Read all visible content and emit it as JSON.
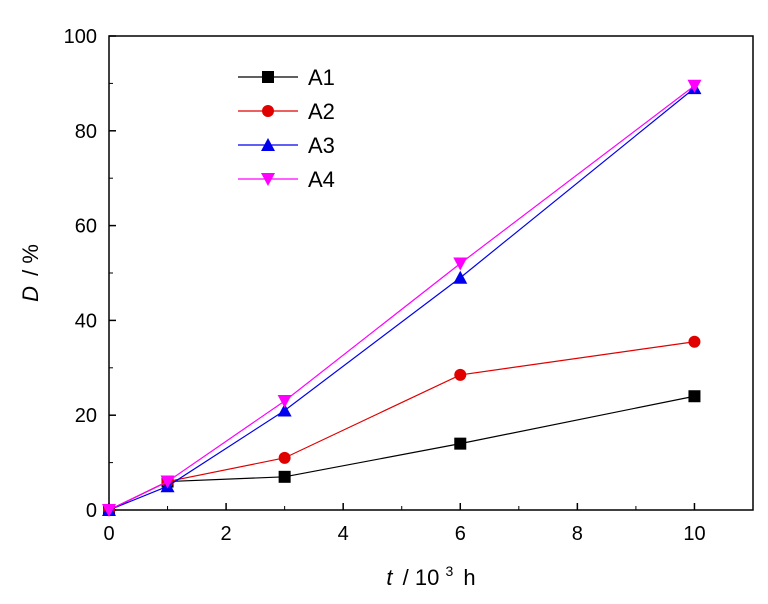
{
  "chart_data": {
    "type": "line",
    "title": "",
    "xlabel": {
      "var": "t",
      "rest": "/ 10",
      "sup": "3",
      "unit": "h"
    },
    "ylabel": {
      "var": "D",
      "rest": "/ %"
    },
    "xlim": [
      0,
      11
    ],
    "ylim": [
      0,
      100
    ],
    "xticks": [
      0,
      2,
      4,
      6,
      8,
      10
    ],
    "yticks": [
      0,
      20,
      40,
      60,
      80,
      100
    ],
    "grid": false,
    "legend": "top-left",
    "x": [
      0,
      1,
      3,
      6,
      10
    ],
    "series": [
      {
        "name": "A1",
        "color": "#000000",
        "marker": "square",
        "values": [
          0,
          6,
          7,
          14,
          24
        ]
      },
      {
        "name": "A2",
        "color": "#e00000",
        "marker": "circle",
        "values": [
          0,
          6,
          11,
          28.5,
          35.5
        ]
      },
      {
        "name": "A3",
        "color": "#0000ee",
        "marker": "triangle-up",
        "values": [
          0,
          5,
          21,
          49,
          89
        ]
      },
      {
        "name": "A4",
        "color": "#ff00ff",
        "marker": "triangle-down",
        "values": [
          0,
          6,
          23,
          52,
          89.5
        ]
      }
    ]
  }
}
